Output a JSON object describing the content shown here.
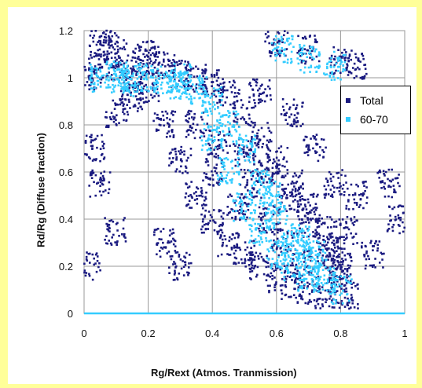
{
  "chart_data": {
    "type": "scatter",
    "xlabel": "Rg/Rext (Atmos. Tranmission)",
    "ylabel": "Rd/Rg (Diffuse fraction)",
    "xlim": [
      0,
      1
    ],
    "ylim": [
      0,
      1.2
    ],
    "x_ticks": [
      "0",
      "0.2",
      "0.4",
      "0.6",
      "0.8",
      "1"
    ],
    "y_ticks": [
      "0",
      "0.2",
      "0.4",
      "0.6",
      "0.8",
      "1",
      "1.2"
    ],
    "grid": true,
    "legend_position": "right",
    "series": [
      {
        "name": "Total",
        "color": "#1A1A80",
        "values": [
          [
            0.02,
            1.0
          ],
          [
            0.05,
            1.05
          ],
          [
            0.05,
            1.15
          ],
          [
            0.08,
            1.19
          ],
          [
            0.1,
            1.1
          ],
          [
            0.12,
            1.05
          ],
          [
            0.15,
            1.0
          ],
          [
            0.18,
            1.07
          ],
          [
            0.2,
            1.1
          ],
          [
            0.25,
            1.05
          ],
          [
            0.3,
            1.02
          ],
          [
            0.35,
            1.0
          ],
          [
            0.4,
            0.98
          ],
          [
            0.45,
            0.93
          ],
          [
            0.5,
            0.85
          ],
          [
            0.55,
            0.75
          ],
          [
            0.6,
            0.65
          ],
          [
            0.65,
            0.55
          ],
          [
            0.7,
            0.45
          ],
          [
            0.75,
            0.35
          ],
          [
            0.78,
            0.25
          ],
          [
            0.8,
            0.15
          ],
          [
            0.82,
            0.08
          ],
          [
            0.85,
            0.5
          ],
          [
            0.9,
            0.25
          ],
          [
            0.95,
            0.55
          ],
          [
            0.98,
            0.4
          ],
          [
            0.03,
            0.7
          ],
          [
            0.05,
            0.55
          ],
          [
            0.1,
            0.85
          ],
          [
            0.15,
            0.9
          ],
          [
            0.2,
            0.95
          ],
          [
            0.25,
            0.8
          ],
          [
            0.3,
            0.65
          ],
          [
            0.35,
            0.5
          ],
          [
            0.4,
            0.4
          ],
          [
            0.45,
            0.3
          ],
          [
            0.5,
            0.25
          ],
          [
            0.55,
            0.2
          ],
          [
            0.6,
            0.15
          ],
          [
            0.65,
            0.12
          ],
          [
            0.7,
            0.1
          ],
          [
            0.75,
            0.08
          ],
          [
            0.25,
            0.3
          ],
          [
            0.3,
            0.2
          ],
          [
            0.1,
            0.35
          ],
          [
            0.02,
            0.2
          ],
          [
            0.85,
            1.05
          ],
          [
            0.8,
            1.07
          ],
          [
            0.7,
            1.12
          ],
          [
            0.6,
            1.15
          ],
          [
            0.55,
            0.95
          ],
          [
            0.65,
            0.85
          ],
          [
            0.72,
            0.7
          ],
          [
            0.78,
            0.55
          ],
          [
            0.82,
            0.35
          ],
          [
            0.4,
            0.6
          ],
          [
            0.48,
            0.45
          ],
          [
            0.52,
            0.55
          ],
          [
            0.58,
            0.4
          ],
          [
            0.62,
            0.3
          ],
          [
            0.68,
            0.22
          ],
          [
            0.35,
            0.8
          ],
          [
            0.42,
            0.72
          ],
          [
            0.5,
            0.68
          ],
          [
            0.57,
            0.6
          ],
          [
            0.64,
            0.48
          ],
          [
            0.7,
            0.38
          ],
          [
            0.76,
            0.28
          ],
          [
            0.8,
            0.2
          ]
        ]
      },
      {
        "name": "60-70",
        "color": "#33CCFF",
        "values": [
          [
            0.05,
            1.0
          ],
          [
            0.1,
            1.01
          ],
          [
            0.15,
            1.0
          ],
          [
            0.2,
            1.0
          ],
          [
            0.25,
            0.99
          ],
          [
            0.3,
            0.97
          ],
          [
            0.35,
            0.95
          ],
          [
            0.4,
            0.9
          ],
          [
            0.45,
            0.8
          ],
          [
            0.5,
            0.7
          ],
          [
            0.55,
            0.55
          ],
          [
            0.6,
            0.42
          ],
          [
            0.65,
            0.3
          ],
          [
            0.7,
            0.2
          ],
          [
            0.75,
            0.15
          ],
          [
            0.8,
            0.1
          ],
          [
            0.6,
            0.25
          ],
          [
            0.65,
            0.2
          ],
          [
            0.7,
            0.15
          ],
          [
            0.55,
            0.35
          ],
          [
            0.5,
            0.45
          ],
          [
            0.45,
            0.6
          ],
          [
            0.62,
            1.12
          ],
          [
            0.7,
            1.08
          ],
          [
            0.78,
            1.05
          ],
          [
            0.3,
            1.0
          ],
          [
            0.12,
            0.98
          ],
          [
            0.68,
            0.32
          ],
          [
            0.72,
            0.25
          ],
          [
            0.58,
            0.5
          ],
          [
            0.4,
            0.75
          ]
        ]
      }
    ],
    "baseline_series_value": 0
  }
}
